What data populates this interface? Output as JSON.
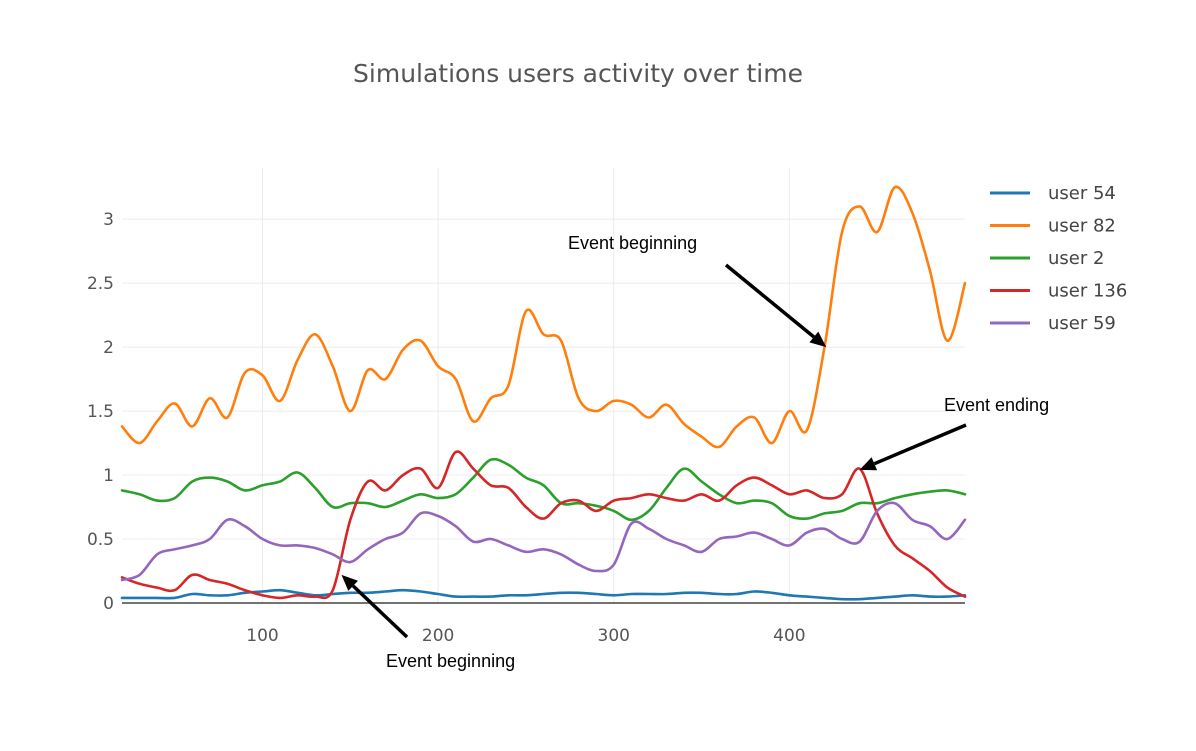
{
  "chart_data": {
    "type": "line",
    "title": "Simulations users activity over time",
    "xlabel": "",
    "ylabel": "",
    "xlim": [
      20,
      500
    ],
    "ylim": [
      0,
      3.4
    ],
    "x_ticks": [
      100,
      200,
      300,
      400
    ],
    "x_tick_labels": [
      "100",
      "200",
      "300",
      "400"
    ],
    "y_ticks": [
      0,
      0.5,
      1,
      1.5,
      2,
      2.5,
      3
    ],
    "y_tick_labels": [
      "0",
      "0.5",
      "1",
      "1.5",
      "2",
      "2.5",
      "3"
    ],
    "grid": true,
    "legend_position": "top-right",
    "x": [
      20,
      30,
      40,
      50,
      60,
      70,
      80,
      90,
      100,
      110,
      120,
      130,
      140,
      150,
      160,
      170,
      180,
      190,
      200,
      210,
      220,
      230,
      240,
      250,
      260,
      270,
      280,
      290,
      300,
      310,
      320,
      330,
      340,
      350,
      360,
      370,
      380,
      390,
      400,
      410,
      420,
      430,
      440,
      450,
      460,
      470,
      480,
      490,
      500
    ],
    "series": [
      {
        "name": "user 54",
        "color": "#1f77b4",
        "values": [
          0.04,
          0.04,
          0.04,
          0.04,
          0.07,
          0.06,
          0.06,
          0.08,
          0.09,
          0.1,
          0.08,
          0.06,
          0.07,
          0.08,
          0.08,
          0.09,
          0.1,
          0.09,
          0.07,
          0.05,
          0.05,
          0.05,
          0.06,
          0.06,
          0.07,
          0.08,
          0.08,
          0.07,
          0.06,
          0.07,
          0.07,
          0.07,
          0.08,
          0.08,
          0.07,
          0.07,
          0.09,
          0.08,
          0.06,
          0.05,
          0.04,
          0.03,
          0.03,
          0.04,
          0.05,
          0.06,
          0.05,
          0.05,
          0.06
        ]
      },
      {
        "name": "user 82",
        "color": "#ff7f0e",
        "values": [
          1.38,
          1.25,
          1.42,
          1.56,
          1.38,
          1.6,
          1.45,
          1.8,
          1.78,
          1.58,
          1.9,
          2.1,
          1.85,
          1.5,
          1.82,
          1.75,
          1.98,
          2.05,
          1.85,
          1.75,
          1.42,
          1.6,
          1.7,
          2.28,
          2.1,
          2.05,
          1.6,
          1.5,
          1.58,
          1.55,
          1.45,
          1.55,
          1.4,
          1.3,
          1.22,
          1.38,
          1.45,
          1.25,
          1.5,
          1.35,
          2.0,
          2.9,
          3.1,
          2.9,
          3.25,
          3.05,
          2.6,
          2.05,
          2.5
        ]
      },
      {
        "name": "user 2",
        "color": "#2ca02c",
        "values": [
          0.88,
          0.85,
          0.8,
          0.82,
          0.95,
          0.98,
          0.95,
          0.88,
          0.92,
          0.95,
          1.02,
          0.9,
          0.75,
          0.78,
          0.78,
          0.75,
          0.8,
          0.85,
          0.82,
          0.85,
          0.98,
          1.12,
          1.08,
          0.98,
          0.92,
          0.78,
          0.78,
          0.76,
          0.72,
          0.65,
          0.72,
          0.9,
          1.05,
          0.95,
          0.85,
          0.78,
          0.8,
          0.78,
          0.68,
          0.66,
          0.7,
          0.72,
          0.78,
          0.78,
          0.82,
          0.85,
          0.87,
          0.88,
          0.85
        ]
      },
      {
        "name": "user 136",
        "color": "#d62728",
        "values": [
          0.2,
          0.15,
          0.12,
          0.1,
          0.22,
          0.18,
          0.15,
          0.1,
          0.06,
          0.04,
          0.06,
          0.05,
          0.1,
          0.65,
          0.95,
          0.88,
          1.0,
          1.05,
          0.9,
          1.18,
          1.05,
          0.92,
          0.9,
          0.75,
          0.66,
          0.78,
          0.8,
          0.72,
          0.8,
          0.82,
          0.85,
          0.82,
          0.8,
          0.85,
          0.8,
          0.92,
          0.98,
          0.92,
          0.85,
          0.88,
          0.82,
          0.85,
          1.05,
          0.7,
          0.45,
          0.35,
          0.25,
          0.12,
          0.05
        ]
      },
      {
        "name": "user 59",
        "color": "#9467bd",
        "values": [
          0.18,
          0.22,
          0.38,
          0.42,
          0.45,
          0.5,
          0.65,
          0.6,
          0.5,
          0.45,
          0.45,
          0.43,
          0.38,
          0.32,
          0.42,
          0.5,
          0.55,
          0.7,
          0.68,
          0.6,
          0.48,
          0.5,
          0.45,
          0.4,
          0.42,
          0.38,
          0.3,
          0.25,
          0.3,
          0.62,
          0.58,
          0.5,
          0.45,
          0.4,
          0.5,
          0.52,
          0.55,
          0.5,
          0.45,
          0.55,
          0.58,
          0.5,
          0.48,
          0.72,
          0.78,
          0.65,
          0.6,
          0.5,
          0.65
        ]
      }
    ],
    "annotations": [
      {
        "text": "Event beginning",
        "arrow_to_x": 421,
        "arrow_to_y": 2.0
      },
      {
        "text": "Event ending",
        "arrow_to_x": 440,
        "arrow_to_y": 1.04
      },
      {
        "text": "Event beginning",
        "arrow_to_x": 145,
        "arrow_to_y": 0.22
      }
    ]
  }
}
